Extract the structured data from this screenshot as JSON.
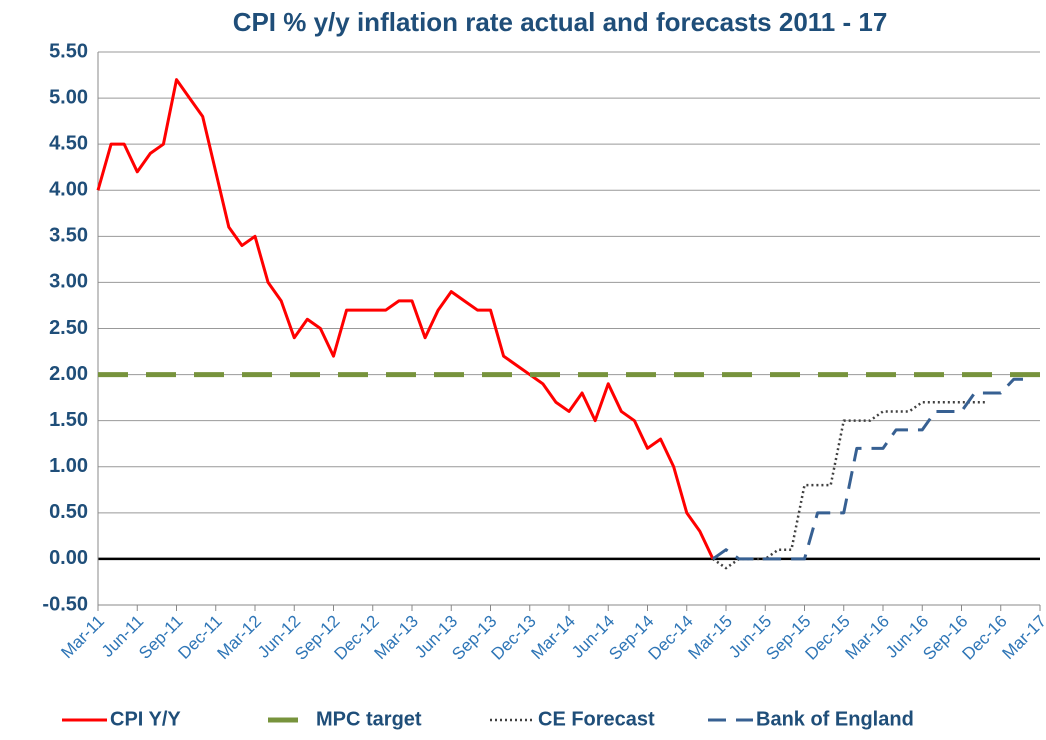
{
  "chart_data": {
    "type": "line",
    "title": "CPI % y/y inflation rate actual and forecasts 2011 - 17",
    "categories": [
      "Mar-11",
      null,
      null,
      "Jun-11",
      null,
      null,
      "Sep-11",
      null,
      null,
      "Dec-11",
      null,
      null,
      "Mar-12",
      null,
      null,
      "Jun-12",
      null,
      null,
      "Sep-12",
      null,
      null,
      "Dec-12",
      null,
      null,
      "Mar-13",
      null,
      null,
      "Jun-13",
      null,
      null,
      "Sep-13",
      null,
      null,
      "Dec-13",
      null,
      null,
      "Mar-14",
      null,
      null,
      "Jun-14",
      null,
      null,
      "Sep-14",
      null,
      null,
      "Dec-14",
      null,
      null,
      "Mar-15",
      null,
      null,
      "Jun-15",
      null,
      null,
      "Sep-15",
      null,
      null,
      "Dec-15",
      null,
      null,
      "Mar-16",
      null,
      null,
      "Jun-16",
      null,
      null,
      "Sep-16",
      null,
      null,
      "Dec-16",
      null,
      null,
      "Mar-17"
    ],
    "series": [
      {
        "name": "CPI Y/Y",
        "color": "#ff0000",
        "style": "solid",
        "width": 3,
        "values": [
          4.0,
          4.5,
          4.5,
          4.2,
          4.4,
          4.5,
          5.2,
          5.0,
          4.8,
          4.2,
          3.6,
          3.4,
          3.5,
          3.0,
          2.8,
          2.4,
          2.6,
          2.5,
          2.2,
          2.7,
          2.7,
          2.7,
          2.7,
          2.8,
          2.8,
          2.4,
          2.7,
          2.9,
          2.8,
          2.7,
          2.7,
          2.2,
          2.1,
          2.0,
          1.9,
          1.7,
          1.6,
          1.8,
          1.5,
          1.9,
          1.6,
          1.5,
          1.2,
          1.3,
          1.0,
          0.5,
          0.3,
          0.0,
          null,
          null,
          null,
          null,
          null,
          null,
          null,
          null,
          null,
          null,
          null,
          null,
          null,
          null,
          null,
          null,
          null,
          null,
          null,
          null,
          null,
          null,
          null,
          null,
          null
        ]
      },
      {
        "name": "MPC target",
        "color": "#77933c",
        "style": "dashed",
        "width": 5,
        "values": [
          2,
          2,
          2,
          2,
          2,
          2,
          2,
          2,
          2,
          2,
          2,
          2,
          2,
          2,
          2,
          2,
          2,
          2,
          2,
          2,
          2,
          2,
          2,
          2,
          2,
          2,
          2,
          2,
          2,
          2,
          2,
          2,
          2,
          2,
          2,
          2,
          2,
          2,
          2,
          2,
          2,
          2,
          2,
          2,
          2,
          2,
          2,
          2,
          2,
          2,
          2,
          2,
          2,
          2,
          2,
          2,
          2,
          2,
          2,
          2,
          2,
          2,
          2,
          2,
          2,
          2,
          2,
          2,
          2,
          2,
          2,
          2,
          2
        ]
      },
      {
        "name": "CE Forecast",
        "color": "#404040",
        "style": "dotted",
        "width": 2.5,
        "values": [
          null,
          null,
          null,
          null,
          null,
          null,
          null,
          null,
          null,
          null,
          null,
          null,
          null,
          null,
          null,
          null,
          null,
          null,
          null,
          null,
          null,
          null,
          null,
          null,
          null,
          null,
          null,
          null,
          null,
          null,
          null,
          null,
          null,
          null,
          null,
          null,
          null,
          null,
          null,
          null,
          null,
          null,
          null,
          null,
          null,
          null,
          null,
          0.0,
          -0.1,
          0.0,
          0.0,
          0.0,
          0.1,
          0.1,
          0.8,
          0.8,
          0.8,
          1.5,
          1.5,
          1.5,
          1.6,
          1.6,
          1.6,
          1.7,
          1.7,
          1.7,
          1.7,
          1.7,
          1.7,
          null,
          null,
          null,
          null
        ]
      },
      {
        "name": "Bank of England",
        "color": "#376092",
        "style": "dashed",
        "width": 3,
        "values": [
          null,
          null,
          null,
          null,
          null,
          null,
          null,
          null,
          null,
          null,
          null,
          null,
          null,
          null,
          null,
          null,
          null,
          null,
          null,
          null,
          null,
          null,
          null,
          null,
          null,
          null,
          null,
          null,
          null,
          null,
          null,
          null,
          null,
          null,
          null,
          null,
          null,
          null,
          null,
          null,
          null,
          null,
          null,
          null,
          null,
          null,
          null,
          0.0,
          0.1,
          0.0,
          0.0,
          0.0,
          0.0,
          0.0,
          0.0,
          0.5,
          0.5,
          0.5,
          1.2,
          1.2,
          1.2,
          1.4,
          1.4,
          1.4,
          1.6,
          1.6,
          1.6,
          1.8,
          1.8,
          1.8,
          1.95,
          1.95,
          null
        ]
      }
    ],
    "ylim": [
      -0.5,
      5.5
    ],
    "yticks": [
      {
        "value": -0.5,
        "label": "-0.50"
      },
      {
        "value": 0,
        "label": "0.00"
      },
      {
        "value": 0.5,
        "label": "0.50"
      },
      {
        "value": 1,
        "label": "1.00"
      },
      {
        "value": 1.5,
        "label": "1.50"
      },
      {
        "value": 2,
        "label": "2.00"
      },
      {
        "value": 2.5,
        "label": "2.50"
      },
      {
        "value": 3,
        "label": "3.00"
      },
      {
        "value": 3.5,
        "label": "3.50"
      },
      {
        "value": 4,
        "label": "4.00"
      },
      {
        "value": 4.5,
        "label": "4.50"
      },
      {
        "value": 5,
        "label": "5.00"
      },
      {
        "value": 5.5,
        "label": "5.50"
      }
    ],
    "grid": true
  }
}
